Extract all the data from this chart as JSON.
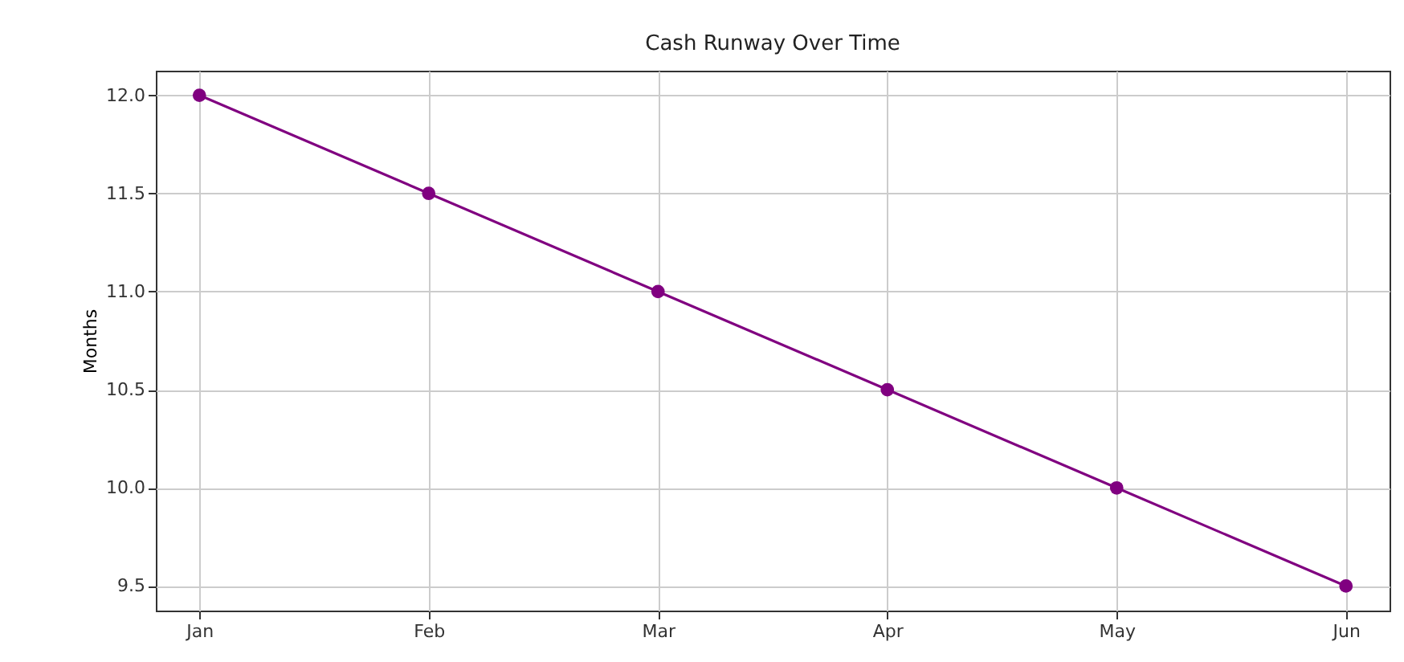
{
  "chart_data": {
    "type": "line",
    "title": "Cash Runway Over Time",
    "ylabel": "Months",
    "categories": [
      "Jan",
      "Feb",
      "Mar",
      "Apr",
      "May",
      "Jun"
    ],
    "series": [
      {
        "color": "#800080",
        "values": [
          12.0,
          11.5,
          11.0,
          10.5,
          10.0,
          9.5
        ]
      }
    ],
    "ylim": [
      9.375,
      12.125
    ],
    "yticks": [
      {
        "value": 9.5,
        "label": "9.5"
      },
      {
        "value": 10,
        "label": "10.0"
      },
      {
        "value": 10.5,
        "label": "10.5"
      },
      {
        "value": 11,
        "label": "11.0"
      },
      {
        "value": 11.5,
        "label": "11.5"
      },
      {
        "value": 12,
        "label": "12.0"
      }
    ],
    "grid": true,
    "marker": "circle",
    "line_style": "solid"
  }
}
